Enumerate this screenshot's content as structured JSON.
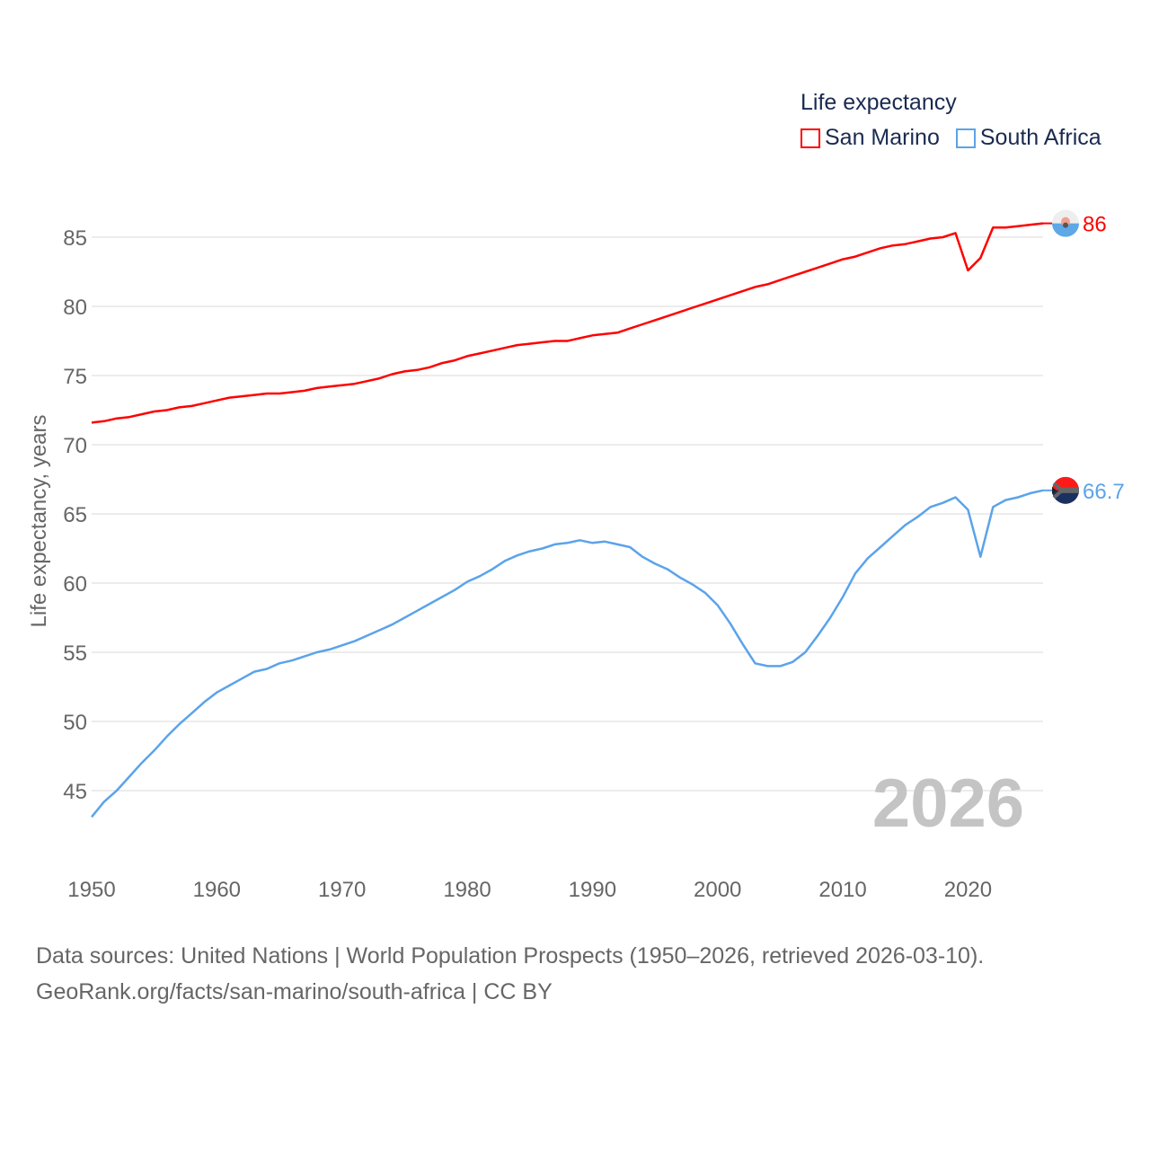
{
  "chart_data": {
    "type": "line",
    "title": "Life expectancy",
    "xlabel": "",
    "ylabel": "Life expectancy, years",
    "xlim": [
      1950,
      2026
    ],
    "ylim": [
      42,
      88
    ],
    "x_ticks": [
      "1950",
      "1960",
      "1970",
      "1980",
      "1990",
      "2000",
      "2010",
      "2020"
    ],
    "y_ticks": [
      "45",
      "50",
      "55",
      "60",
      "65",
      "70",
      "75",
      "80",
      "85"
    ],
    "grid": true,
    "legend_position": "top-right",
    "watermark_year": "2026",
    "x": [
      1950,
      1951,
      1952,
      1953,
      1954,
      1955,
      1956,
      1957,
      1958,
      1959,
      1960,
      1961,
      1962,
      1963,
      1964,
      1965,
      1966,
      1967,
      1968,
      1969,
      1970,
      1971,
      1972,
      1973,
      1974,
      1975,
      1976,
      1977,
      1978,
      1979,
      1980,
      1981,
      1982,
      1983,
      1984,
      1985,
      1986,
      1987,
      1988,
      1989,
      1990,
      1991,
      1992,
      1993,
      1994,
      1995,
      1996,
      1997,
      1998,
      1999,
      2000,
      2001,
      2002,
      2003,
      2004,
      2005,
      2006,
      2007,
      2008,
      2009,
      2010,
      2011,
      2012,
      2013,
      2014,
      2015,
      2016,
      2017,
      2018,
      2019,
      2020,
      2021,
      2022,
      2023,
      2024,
      2025,
      2026
    ],
    "series": [
      {
        "name": "San Marino",
        "color": "#ff0000",
        "end_label": "86",
        "values": [
          71.6,
          71.7,
          71.9,
          72.0,
          72.2,
          72.4,
          72.5,
          72.7,
          72.8,
          73.0,
          73.2,
          73.4,
          73.5,
          73.6,
          73.7,
          73.7,
          73.8,
          73.9,
          74.1,
          74.2,
          74.3,
          74.4,
          74.6,
          74.8,
          75.1,
          75.3,
          75.4,
          75.6,
          75.9,
          76.1,
          76.4,
          76.6,
          76.8,
          77.0,
          77.2,
          77.3,
          77.4,
          77.5,
          77.5,
          77.7,
          77.9,
          78.0,
          78.1,
          78.4,
          78.7,
          79.0,
          79.3,
          79.6,
          79.9,
          80.2,
          80.5,
          80.8,
          81.1,
          81.4,
          81.6,
          81.9,
          82.2,
          82.5,
          82.8,
          83.1,
          83.4,
          83.6,
          83.9,
          84.2,
          84.4,
          84.5,
          84.7,
          84.9,
          85.0,
          85.3,
          82.6,
          83.5,
          85.7,
          85.7,
          85.8,
          85.9,
          86.0
        ]
      },
      {
        "name": "South Africa",
        "color": "#5ba3ea",
        "end_label": "66.7",
        "values": [
          43.1,
          44.2,
          45.0,
          46.0,
          47.0,
          47.9,
          48.9,
          49.8,
          50.6,
          51.4,
          52.1,
          52.6,
          53.1,
          53.6,
          53.8,
          54.2,
          54.4,
          54.7,
          55.0,
          55.2,
          55.5,
          55.8,
          56.2,
          56.6,
          57.0,
          57.5,
          58.0,
          58.5,
          59.0,
          59.5,
          60.1,
          60.5,
          61.0,
          61.6,
          62.0,
          62.3,
          62.5,
          62.8,
          62.9,
          63.1,
          62.9,
          63.0,
          62.8,
          62.6,
          61.9,
          61.4,
          61.0,
          60.4,
          59.9,
          59.3,
          58.4,
          57.1,
          55.6,
          54.2,
          54.0,
          54.0,
          54.3,
          55.0,
          56.2,
          57.5,
          59.0,
          60.7,
          61.8,
          62.6,
          63.4,
          64.2,
          64.8,
          65.5,
          65.8,
          66.2,
          65.3,
          61.9,
          65.5,
          66.0,
          66.2,
          66.5,
          66.7
        ]
      }
    ]
  },
  "footer": {
    "line1": "Data sources: United Nations | World Population Prospects (1950–2026, retrieved 2026-03-10).",
    "line2": "GeoRank.org/facts/san-marino/south-africa | CC BY"
  }
}
